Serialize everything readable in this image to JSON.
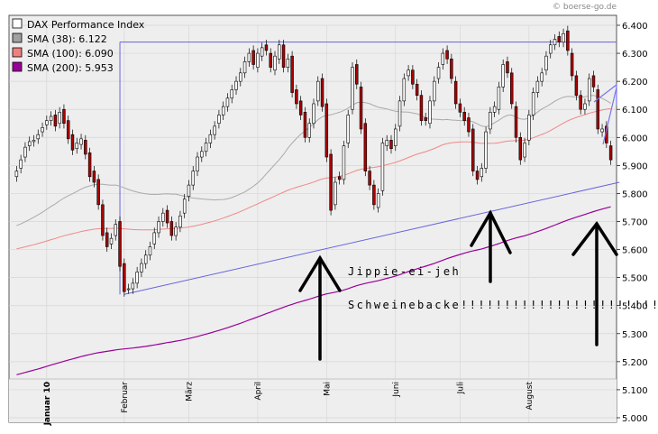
{
  "watermark": "© boerse-go.de",
  "legend": [
    {
      "label": "DAX Performance Index",
      "color": "#ffffff"
    },
    {
      "label": "SMA (38): 6.122",
      "color": "#a0a0a0"
    },
    {
      "label": "SMA (100): 6.090",
      "color": "#f08080"
    },
    {
      "label": "SMA (200): 5.953",
      "color": "#990099"
    }
  ],
  "annotations": {
    "line1": "Jippie-ei-jeh",
    "line2": "Schweinebacke!!!!!!!!!!!!!!!!!!!!!!!"
  },
  "chart_data": {
    "type": "candlestick",
    "ylim": [
      5000,
      6450
    ],
    "y_ticks": [
      "6.400",
      "6.300",
      "6.200",
      "6.100",
      "6.000",
      "5.900",
      "5.800",
      "5.700",
      "5.600",
      "5.500",
      "5.400",
      "5.300",
      "5.200",
      "5.100",
      "5.000"
    ],
    "y_tick_values": [
      6400,
      6300,
      6200,
      6100,
      6000,
      5900,
      5800,
      5700,
      5600,
      5500,
      5400,
      5300,
      5200,
      5100,
      5000
    ],
    "month_labels": [
      "Januar 10",
      "Februar",
      "März",
      "April",
      "Mai",
      "Juni",
      "Juli",
      "August"
    ],
    "month_label_positions": [
      7,
      25,
      40,
      56,
      72,
      88,
      103,
      119
    ],
    "horizontal_line": 6340,
    "support_line": {
      "x0": 25,
      "y0": 5440,
      "x1": 140,
      "y1": 5840
    },
    "vertical_marker": 24,
    "series": [
      {
        "name": "DAX Performance Index",
        "kind": "ohlc",
        "close": [
          5880,
          5920,
          5965,
          5985,
          5990,
          6010,
          6035,
          6060,
          6075,
          6040,
          6090,
          6050,
          5995,
          5955,
          5980,
          5995,
          5940,
          5860,
          5840,
          5760,
          5650,
          5610,
          5640,
          5690,
          5540,
          5450,
          5460,
          5480,
          5520,
          5550,
          5580,
          5610,
          5660,
          5700,
          5730,
          5695,
          5650,
          5680,
          5720,
          5780,
          5830,
          5880,
          5930,
          5950,
          5980,
          6010,
          6040,
          6080,
          6110,
          6140,
          6170,
          6200,
          6230,
          6270,
          6300,
          6260,
          6300,
          6320,
          6310,
          6250,
          6290,
          6330,
          6250,
          6280,
          6160,
          6120,
          6080,
          6000,
          6050,
          6120,
          6200,
          6110,
          5930,
          5740,
          5840,
          5850,
          5970,
          6080,
          6250,
          6190,
          6030,
          5880,
          5830,
          5760,
          5800,
          5980,
          5990,
          5960,
          6030,
          6130,
          6210,
          6240,
          6190,
          6150,
          6060,
          6060,
          6130,
          6200,
          6250,
          6300,
          6280,
          6210,
          6120,
          6090,
          6060,
          6020,
          5880,
          5850,
          5890,
          6020,
          6090,
          6110,
          6180,
          6260,
          6230,
          6120,
          6000,
          5920,
          5980,
          6080,
          6160,
          6200,
          6230,
          6290,
          6330,
          6350,
          6340,
          6370,
          6310,
          6220,
          6150,
          6100,
          6120,
          6210,
          6180,
          6030,
          6030,
          5980,
          5920
        ],
        "open": [
          5860,
          5890,
          5930,
          5970,
          5985,
          5995,
          6020,
          6045,
          6060,
          6080,
          6050,
          6100,
          6060,
          6010,
          5960,
          5975,
          5990,
          5945,
          5880,
          5850,
          5760,
          5660,
          5620,
          5650,
          5700,
          5550,
          5460,
          5460,
          5480,
          5520,
          5550,
          5580,
          5620,
          5660,
          5700,
          5740,
          5700,
          5650,
          5680,
          5730,
          5790,
          5830,
          5880,
          5930,
          5950,
          5980,
          6010,
          6050,
          6080,
          6110,
          6140,
          6170,
          6200,
          6230,
          6270,
          6310,
          6250,
          6290,
          6330,
          6300,
          6240,
          6280,
          6330,
          6250,
          6290,
          6170,
          6130,
          6090,
          6000,
          6050,
          6130,
          6210,
          6120,
          5940,
          5760,
          5860,
          5850,
          5980,
          6100,
          6260,
          6180,
          6050,
          5880,
          5830,
          5750,
          5810,
          5970,
          5990,
          5970,
          6040,
          6130,
          6220,
          6240,
          6190,
          6150,
          6070,
          6050,
          6130,
          6210,
          6260,
          6310,
          6280,
          6200,
          6120,
          6090,
          6070,
          6030,
          5880,
          5860,
          5890,
          6030,
          6090,
          6100,
          6180,
          6270,
          6230,
          6110,
          6000,
          5930,
          5990,
          6080,
          6160,
          6200,
          6240,
          6300,
          6330,
          6360,
          6340,
          6380,
          6300,
          6220,
          6150,
          6100,
          6130,
          6220,
          6170,
          6020,
          6040,
          5970
        ]
      }
    ]
  }
}
